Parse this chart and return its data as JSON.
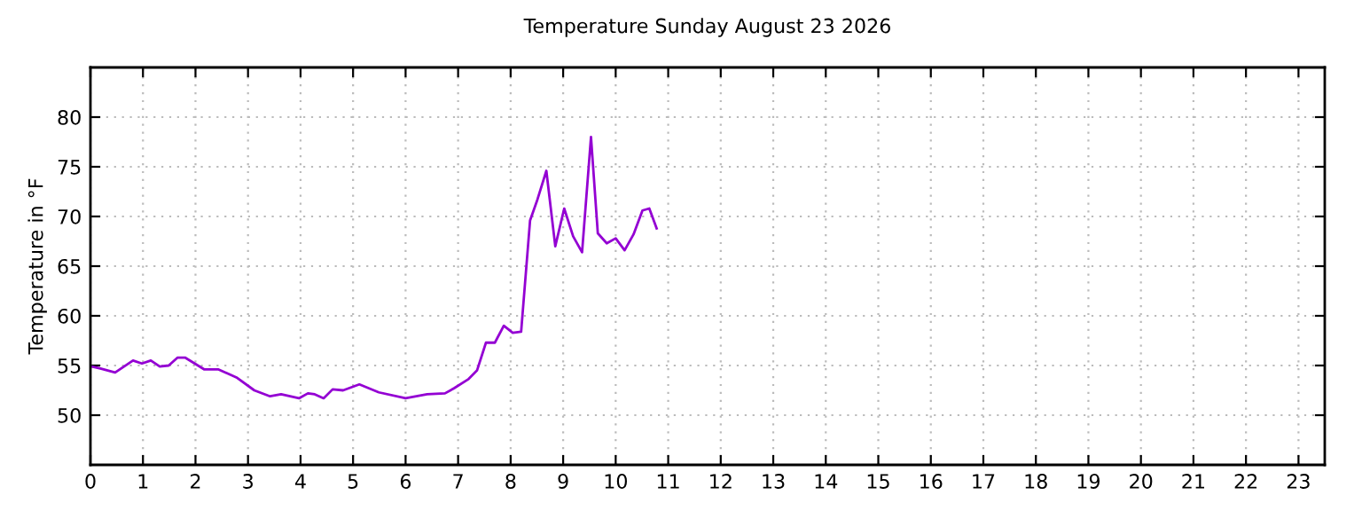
{
  "chart_data": {
    "type": "line",
    "title": "Temperature Sunday August 23 2026",
    "ylabel": "Temperature in °F",
    "xlim": [
      0,
      23.5
    ],
    "xticks": [
      0,
      1,
      2,
      3,
      4,
      5,
      6,
      7,
      8,
      9,
      10,
      11,
      12,
      13,
      14,
      15,
      16,
      17,
      18,
      19,
      20,
      21,
      22,
      23
    ],
    "ylim": [
      45,
      85
    ],
    "yticks": [
      50,
      55,
      60,
      65,
      70,
      75,
      80
    ],
    "grid": true,
    "marker": "none",
    "line_style": "solid",
    "series": [
      {
        "color": "#9400d3",
        "x": [
          0.02,
          0.19,
          0.47,
          0.81,
          0.98,
          1.15,
          1.32,
          1.49,
          1.66,
          1.8,
          2.17,
          2.44,
          2.78,
          3.12,
          3.42,
          3.63,
          3.97,
          4.14,
          4.27,
          4.44,
          4.61,
          4.81,
          5.12,
          5.49,
          6.0,
          6.41,
          6.75,
          6.92,
          7.19,
          7.36,
          7.53,
          7.7,
          7.87,
          8.04,
          8.2,
          8.37,
          8.51,
          8.68,
          8.85,
          9.02,
          9.19,
          9.36,
          9.53,
          9.66,
          9.83,
          10.0,
          10.17,
          10.34,
          10.51,
          10.64,
          10.78
        ],
        "values": [
          54.9,
          54.7,
          54.3,
          55.5,
          55.2,
          55.5,
          54.9,
          55.0,
          55.8,
          55.8,
          54.6,
          54.6,
          53.8,
          52.5,
          51.9,
          52.1,
          51.7,
          52.2,
          52.1,
          51.7,
          52.6,
          52.5,
          53.1,
          52.3,
          51.7,
          52.1,
          52.2,
          52.7,
          53.6,
          54.5,
          57.3,
          57.3,
          59.0,
          58.3,
          58.4,
          69.6,
          71.7,
          74.6,
          67.0,
          70.8,
          68.0,
          66.4,
          78.0,
          68.3,
          67.3,
          67.8,
          66.6,
          68.2,
          70.6,
          70.8,
          68.8
        ]
      }
    ]
  }
}
